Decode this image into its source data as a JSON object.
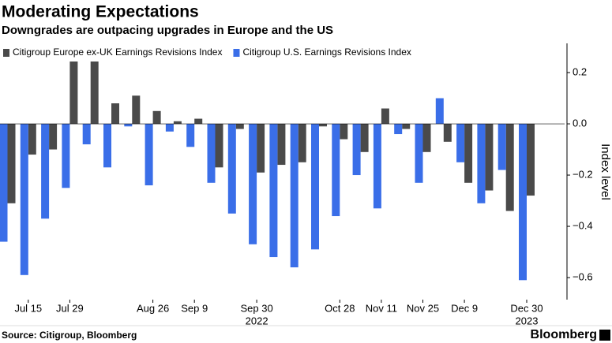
{
  "chart_data": {
    "type": "bar",
    "title": "Moderating Expectations",
    "subtitle": "Downgrades are outpacing upgrades in Europe and the US",
    "y_axis_label": "Index level",
    "source": "Source: Citigroup, Bloomberg",
    "brand": "Bloomberg",
    "categories": [
      null,
      "Jul 15",
      null,
      "Jul 29",
      null,
      null,
      null,
      "Aug 26",
      null,
      "Sep 9",
      null,
      null,
      "Sep 30",
      null,
      null,
      null,
      "Oct 28",
      null,
      "Nov 11",
      null,
      "Nov 25",
      null,
      "Dec 9",
      null,
      null,
      "Dec 30"
    ],
    "year_labels": [
      {
        "category": "Sep 30",
        "label": "2022"
      },
      {
        "category": "Dec 30",
        "label": "2023"
      }
    ],
    "series": [
      {
        "name": "Citigroup Europe ex-UK Earnings Revisions Index",
        "color": "#4a4a4a",
        "values": [
          -0.31,
          -0.12,
          -0.1,
          0.25,
          0.25,
          0.08,
          0.11,
          0.05,
          0.01,
          0.02,
          -0.17,
          -0.02,
          -0.19,
          -0.16,
          -0.15,
          -0.01,
          -0.06,
          -0.11,
          0.06,
          -0.02,
          -0.11,
          -0.07,
          -0.23,
          -0.26,
          -0.34,
          -0.28
        ]
      },
      {
        "name": "Citigroup U.S. Earnings Revisions Index",
        "color": "#3a6ee8",
        "values": [
          -0.46,
          -0.59,
          -0.37,
          -0.25,
          -0.08,
          -0.17,
          -0.01,
          -0.24,
          -0.03,
          -0.09,
          -0.23,
          -0.35,
          -0.47,
          -0.52,
          -0.56,
          -0.49,
          -0.36,
          -0.2,
          -0.33,
          -0.04,
          -0.23,
          0.1,
          -0.15,
          -0.31,
          -0.18,
          -0.61
        ]
      }
    ],
    "ylim": [
      -0.686,
      0.314
    ],
    "yticks": [
      0.2,
      {
        "value": 0,
        "label": "0.0"
      },
      {
        "value": -0.2,
        "label": "−0.2"
      },
      {
        "value": -0.4,
        "label": "−0.4"
      },
      {
        "value": -0.6,
        "label": "−0.6"
      }
    ],
    "grid": false,
    "legend": "top-left"
  }
}
